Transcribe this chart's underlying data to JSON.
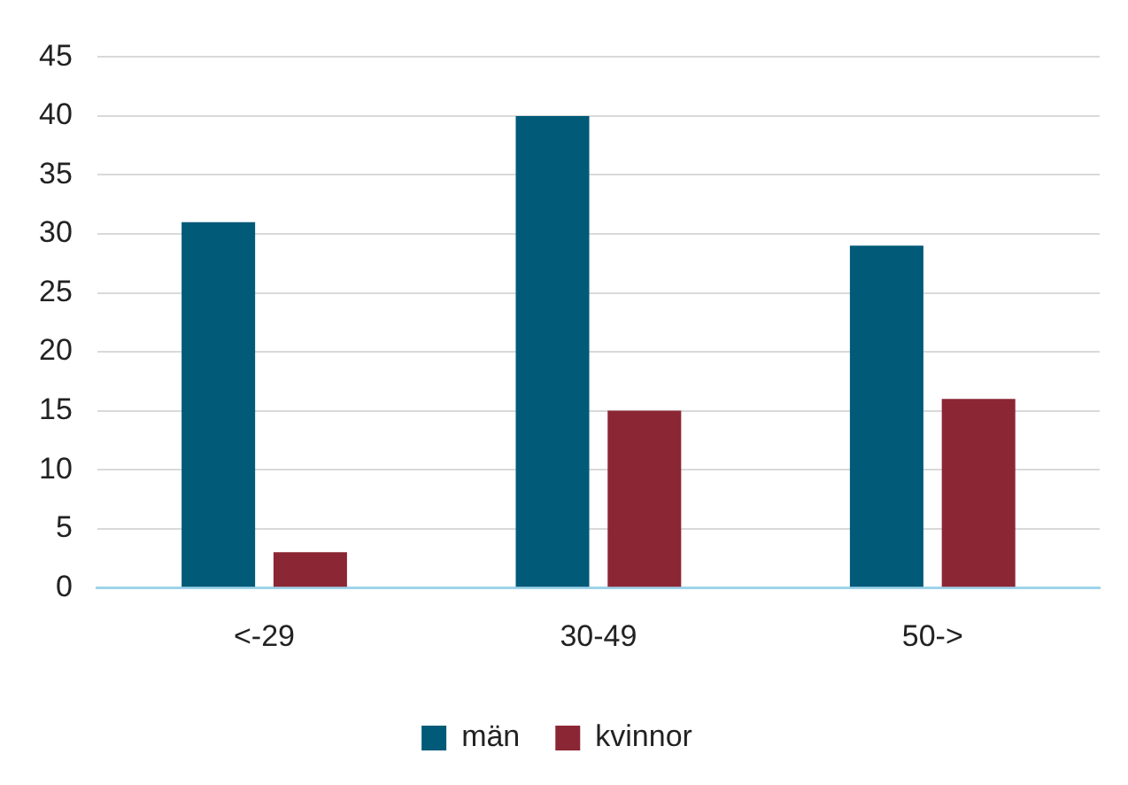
{
  "chart_data": {
    "type": "bar",
    "categories": [
      "<-29",
      "30-49",
      "50->"
    ],
    "series": [
      {
        "name": "män",
        "color": "#005a78",
        "values": [
          31,
          40,
          29
        ]
      },
      {
        "name": "kvinnor",
        "color": "#8b2635",
        "values": [
          3,
          15,
          16
        ]
      }
    ],
    "ylim": [
      0,
      45
    ],
    "yticks": [
      0,
      5,
      10,
      15,
      20,
      25,
      30,
      35,
      40,
      45
    ],
    "grid": "y",
    "legend": "bottom"
  }
}
